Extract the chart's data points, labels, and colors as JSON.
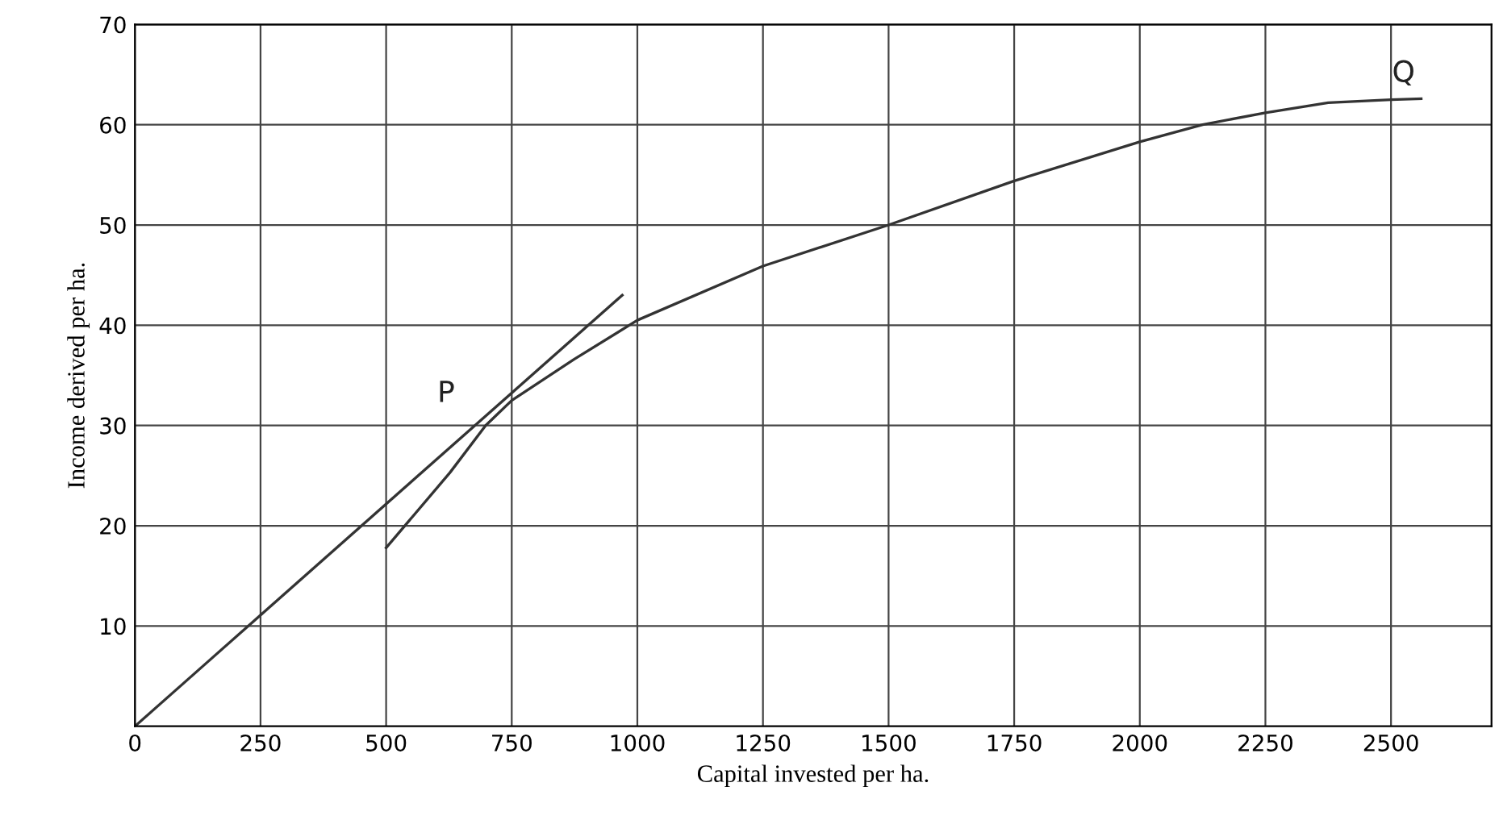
{
  "chart_data": {
    "type": "line",
    "xlabel": "Capital invested per ha.",
    "ylabel": "Income derived per ha.",
    "series": [
      {
        "color": "#333333",
        "x": [
          500,
          627,
          698,
          750,
          874,
          1000,
          1250,
          1500,
          1750,
          2000,
          2125,
          2250,
          2375,
          2500,
          2560
        ],
        "values": [
          17.8,
          25.3,
          30,
          32.5,
          36.6,
          40.5,
          45.9,
          50,
          54.4,
          58.3,
          60,
          61.2,
          62.2,
          62.5,
          62.6
        ]
      },
      {
        "color": "#333333",
        "x": [
          0,
          970
        ],
        "values": [
          0,
          43
        ]
      }
    ],
    "annotations": [
      {
        "text": "P",
        "x": 700,
        "y": 31
      },
      {
        "text": "Q",
        "x": 2520,
        "y": 62.5
      }
    ],
    "xlim": [
      0,
      2700
    ],
    "ylim": [
      0,
      70
    ],
    "xticks": [
      0,
      250,
      500,
      750,
      1000,
      1250,
      1500,
      1750,
      2000,
      2250,
      2500
    ],
    "yticks": [
      10,
      20,
      30,
      40,
      50,
      60,
      70
    ],
    "grid": true,
    "marker": "none",
    "line_style": "solid"
  }
}
